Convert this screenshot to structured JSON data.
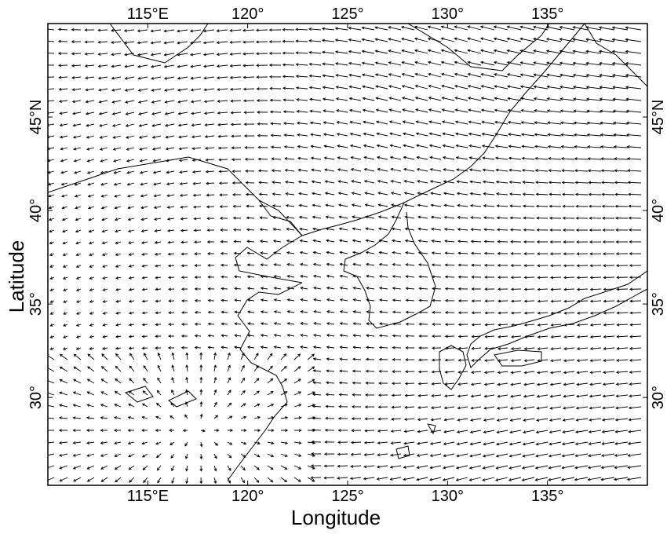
{
  "chart_data": {
    "type": "vector-field-map",
    "title": "",
    "xlabel": "Longitude",
    "ylabel": "Latitude",
    "x_ticks": [
      {
        "value": 115,
        "label": "115°E"
      },
      {
        "value": 120,
        "label": "120°"
      },
      {
        "value": 125,
        "label": "125°"
      },
      {
        "value": 130,
        "label": "130°"
      },
      {
        "value": 135,
        "label": "135°"
      }
    ],
    "y_ticks": [
      {
        "value": 45,
        "label": "45°N"
      },
      {
        "value": 40,
        "label": "40°"
      },
      {
        "value": 35,
        "label": "35°"
      },
      {
        "value": 30,
        "label": "30°"
      }
    ],
    "xlim": [
      110,
      140
    ],
    "ylim": [
      25.3,
      50
    ],
    "grid": false,
    "tick_labels_on_all_sides": true,
    "colors": {
      "arrows": "#000000",
      "coastline": "#000000",
      "frame": "#000000",
      "background": "#ffffff"
    },
    "flow_description": "Predominantly westward/west-southwestward wind vectors; strong zonal flow over the east (Japan Sea / Pacific), weak and turning (cyclonic) flow in the south-west near 112-118E, 27-32N.",
    "regions": [
      "northeast China",
      "Korean Peninsula",
      "Japan",
      "east China coast",
      "Yellow Sea",
      "East China Sea"
    ]
  }
}
